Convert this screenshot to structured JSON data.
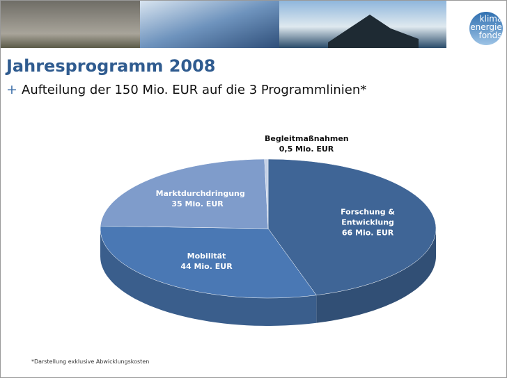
{
  "header": {
    "logo": [
      "klima",
      "energie",
      "fonds"
    ],
    "title": "Jahresprogramm 2008",
    "subtitle": "Aufteilung der 150 Mio. EUR auf die 3 Programmlinien*",
    "footnote": "*Darstellung exklusive Abwicklungskosten"
  },
  "chart_data": {
    "type": "pie",
    "categories": [
      "Forschung & Entwicklung",
      "Mobilität",
      "Marktdurchdringung",
      "Begleitmaßnahmen"
    ],
    "values": [
      66,
      44,
      35,
      0.5
    ],
    "value_labels": [
      "66 Mio. EUR",
      "44 Mio. EUR",
      "35 Mio. EUR",
      "0,5 Mio. EUR"
    ],
    "colors": [
      "#3f6596",
      "#4a78b4",
      "#7f9ccb",
      "#c3d0e6"
    ]
  }
}
